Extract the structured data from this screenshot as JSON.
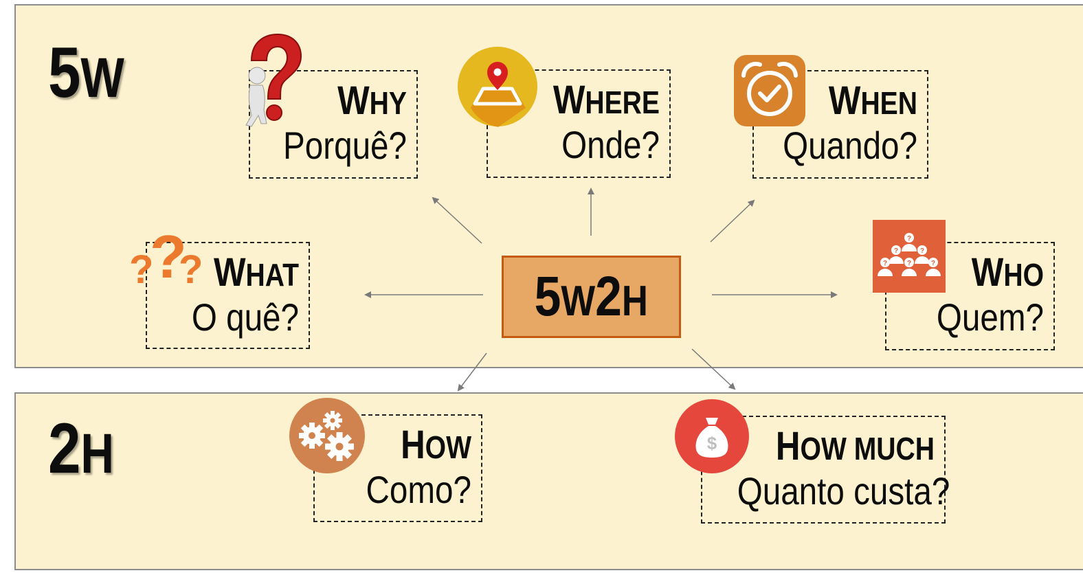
{
  "sections": {
    "top": {
      "big": "5",
      "small": "W"
    },
    "bottom": {
      "big": "2",
      "small": "H"
    }
  },
  "center": {
    "part1": "5",
    "part2": "W",
    "part3": "2",
    "part4": "H"
  },
  "cards": {
    "why": {
      "cap": "W",
      "rest": "hy",
      "pt": "Porquê?"
    },
    "where": {
      "cap": "W",
      "rest": "here",
      "pt": "Onde?"
    },
    "when": {
      "cap": "W",
      "rest": "hen",
      "pt": "Quando?"
    },
    "what": {
      "cap": "W",
      "rest": "hat",
      "pt": "O quê?"
    },
    "who": {
      "cap": "W",
      "rest": "ho",
      "pt": "Quem?"
    },
    "how": {
      "cap": "H",
      "rest": "ow",
      "pt": "Como?"
    },
    "howmuch": {
      "cap": "H",
      "rest": "ow much",
      "pt": "Quanto custa?"
    }
  },
  "icons": {
    "why": "question-person-icon",
    "where": "map-pin-icon",
    "when": "alarm-clock-icon",
    "what": "question-marks-icon",
    "who": "people-questions-icon",
    "how": "gears-icon",
    "howmuch": "money-bag-icon",
    "money_symbol": "$"
  },
  "colors": {
    "panel_bg": "#fdf2cf",
    "center_fill": "#e8a865",
    "center_border": "#c55a11",
    "where_icon": "#e5b820",
    "when_icon": "#d8832c",
    "what_icon": "#ec7a2e",
    "who_icon": "#e0603a",
    "how_icon": "#d0834e",
    "howmuch_icon": "#e5473d"
  }
}
